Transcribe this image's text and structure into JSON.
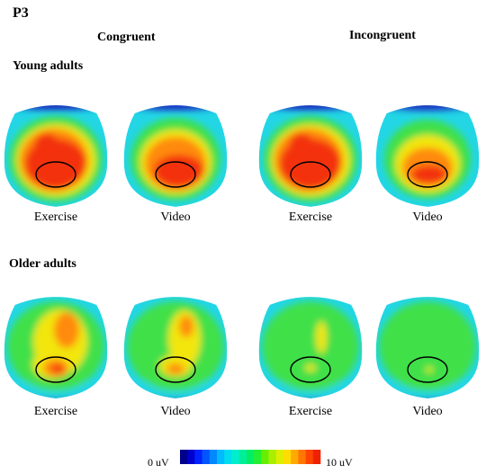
{
  "figure": {
    "title": "P3",
    "columns": {
      "congruent": "Congruent",
      "incongruent": "Incongruent"
    },
    "rows": {
      "young": "Young adults",
      "older": "Older adults"
    }
  },
  "maps": [
    {
      "id": "young-congruent-exercise",
      "group": "young",
      "condition": "congruent",
      "label": "Exercise",
      "pattern": "young_strong"
    },
    {
      "id": "young-congruent-video",
      "group": "young",
      "condition": "congruent",
      "label": "Video",
      "pattern": "young_medium"
    },
    {
      "id": "young-incongruent-exercise",
      "group": "young",
      "condition": "incongruent",
      "label": "Exercise",
      "pattern": "young_strong"
    },
    {
      "id": "young-incongruent-video",
      "group": "young",
      "condition": "incongruent",
      "label": "Video",
      "pattern": "young_weak"
    },
    {
      "id": "older-congruent-exercise",
      "group": "older",
      "condition": "congruent",
      "label": "Exercise",
      "pattern": "older_medium"
    },
    {
      "id": "older-congruent-video",
      "group": "older",
      "condition": "congruent",
      "label": "Video",
      "pattern": "older_weak"
    },
    {
      "id": "older-incongruent-exercise",
      "group": "older",
      "condition": "incongruent",
      "label": "Exercise",
      "pattern": "older_low"
    },
    {
      "id": "older-incongruent-video",
      "group": "older",
      "condition": "incongruent",
      "label": "Video",
      "pattern": "older_lowest"
    }
  ],
  "colorbar": {
    "min_label": "0 uV",
    "max_label": "10 uV",
    "colors": [
      "#00008b",
      "#0000cd",
      "#0022ff",
      "#0055ff",
      "#0088ff",
      "#00bbff",
      "#00ddee",
      "#00eecc",
      "#00ee99",
      "#00ee66",
      "#22ee33",
      "#66ee00",
      "#aaee00",
      "#ddee00",
      "#ffdd00",
      "#ffaa00",
      "#ff7700",
      "#ff4400",
      "#ee2200"
    ]
  },
  "colors": {
    "blue_edge": "#1a2fbf",
    "cyan": "#22d6e6",
    "green": "#3fe04a",
    "yellow": "#f2e60f",
    "orange": "#ff8a10",
    "red": "#f3300a",
    "outline": "#000000"
  }
}
